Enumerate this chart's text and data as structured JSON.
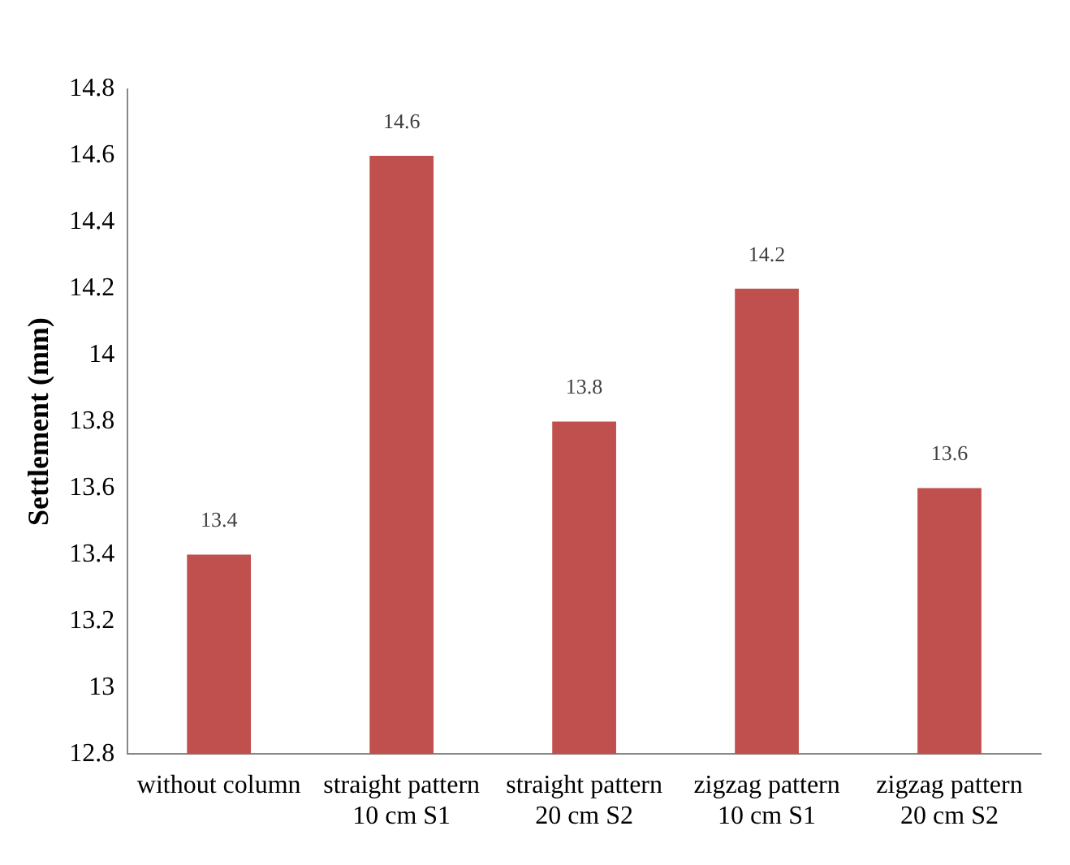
{
  "chart_data": {
    "type": "bar",
    "ylabel": "Settlement (mm)",
    "categories": [
      "without column",
      "straight pattern\n10 cm S1",
      "straight pattern\n20 cm S2",
      "zigzag pattern\n10 cm S1",
      "zigzag pattern\n20 cm S2"
    ],
    "values": [
      13.4,
      14.6,
      13.8,
      14.2,
      13.6
    ],
    "value_labels": [
      "13.4",
      "14.6",
      "13.8",
      "14.2",
      "13.6"
    ],
    "color": "#c0504d",
    "ylim": [
      12.8,
      14.8
    ],
    "yticks": [
      12.8,
      13,
      13.2,
      13.4,
      13.6,
      13.8,
      14,
      14.2,
      14.4,
      14.6,
      14.8
    ],
    "grid": false,
    "legend": false
  }
}
